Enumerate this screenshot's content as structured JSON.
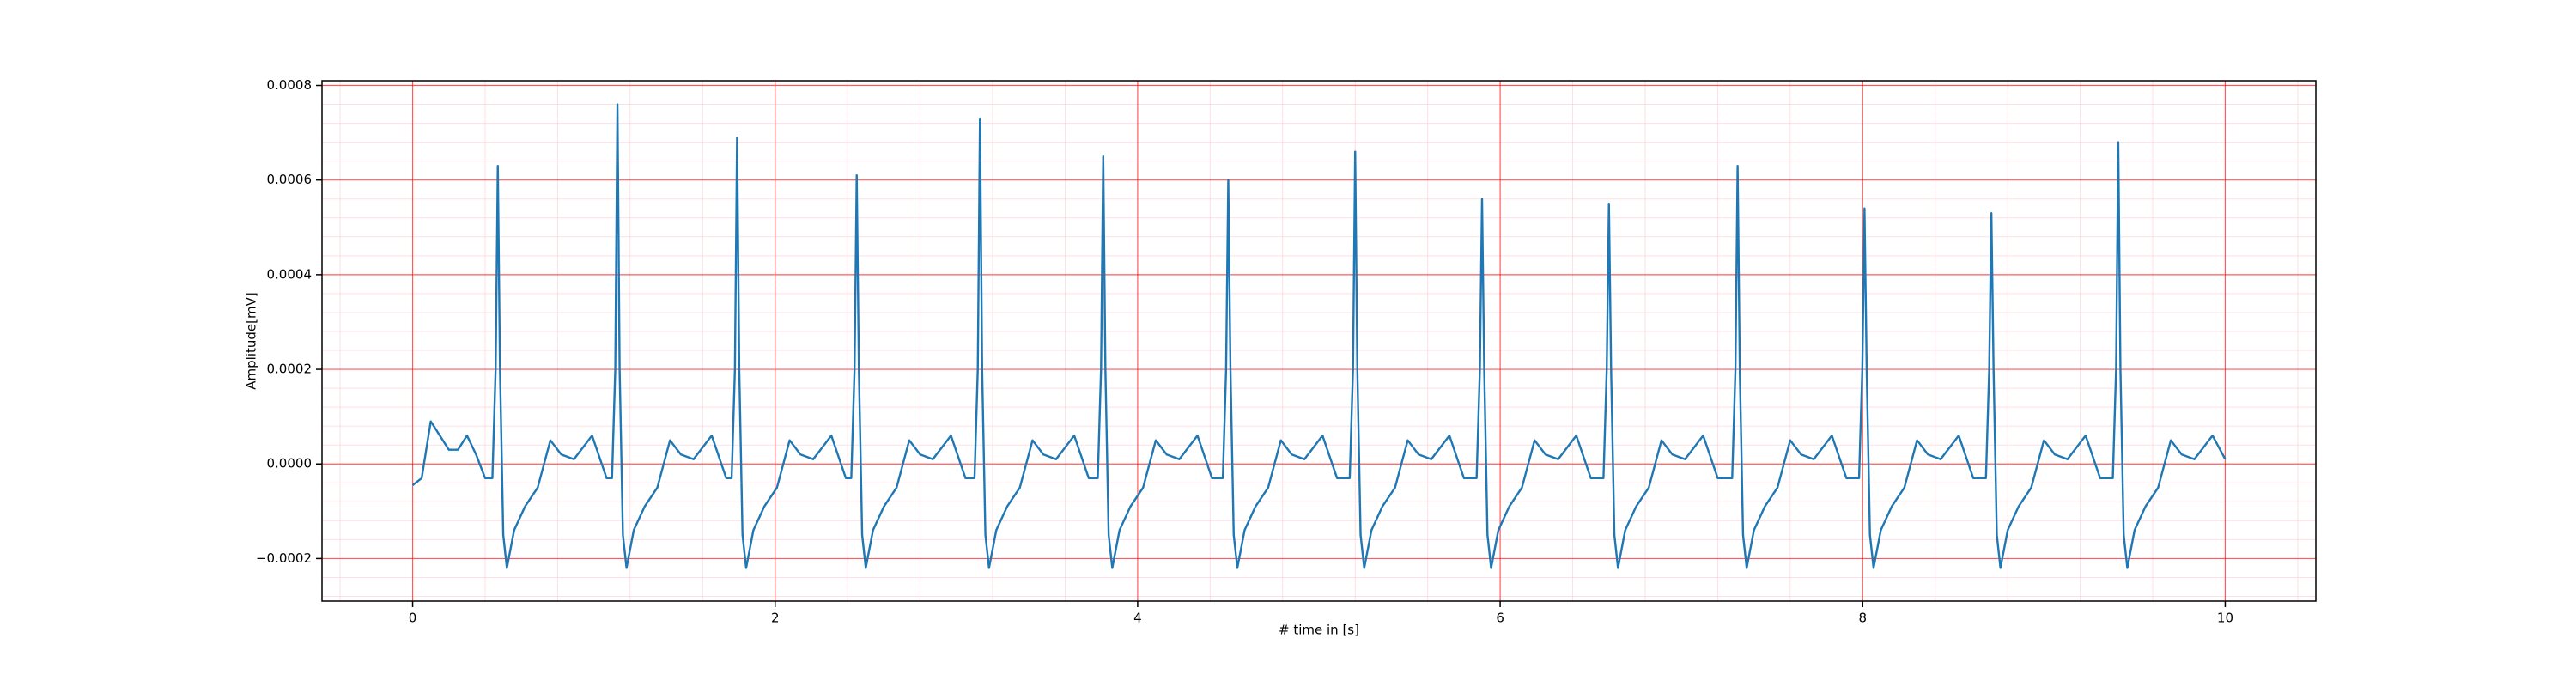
{
  "chart_data": {
    "type": "line",
    "xlabel": "# time in [s]",
    "ylabel": "Amplitude[mV]",
    "xlim": [
      -0.5,
      10.5
    ],
    "ylim": [
      -0.00029,
      0.00081
    ],
    "xticks": [
      0,
      2,
      4,
      6,
      8,
      10
    ],
    "yticks": [
      {
        "value": -0.0002,
        "label": "−0.0002"
      },
      {
        "value": 0,
        "label": "0.0000"
      },
      {
        "value": 0.0002,
        "label": "0.0002"
      },
      {
        "value": 0.0004,
        "label": "0.0004"
      },
      {
        "value": 0.0006,
        "label": "0.0006"
      },
      {
        "value": 0.0008,
        "label": "0.0008"
      }
    ],
    "grid": true,
    "grid_color": "#ff0000",
    "minor_grid_color": "#ffc0cb",
    "series": [
      {
        "color": "#1f77b4",
        "x": [
          0,
          0.05,
          0.1,
          0.15,
          0.2,
          0.25,
          0.3,
          0.35,
          0.4,
          0.44,
          0.458,
          0.47,
          0.482,
          0.5,
          0.52,
          0.56,
          0.62,
          0.69,
          0.76,
          0.82,
          0.89,
          0.99,
          1.07,
          1.1,
          1.118,
          1.13,
          1.142,
          1.16,
          1.18,
          1.22,
          1.28,
          1.35,
          1.42,
          1.48,
          1.55,
          1.65,
          1.73,
          1.76,
          1.778,
          1.79,
          1.802,
          1.82,
          1.84,
          1.88,
          1.94,
          2.01,
          2.08,
          2.14,
          2.21,
          2.31,
          2.39,
          2.42,
          2.438,
          2.45,
          2.462,
          2.48,
          2.5,
          2.54,
          2.6,
          2.67,
          2.74,
          2.8,
          2.87,
          2.97,
          3.05,
          3.1,
          3.118,
          3.13,
          3.142,
          3.16,
          3.18,
          3.22,
          3.28,
          3.35,
          3.42,
          3.48,
          3.55,
          3.65,
          3.73,
          3.78,
          3.798,
          3.81,
          3.822,
          3.84,
          3.86,
          3.9,
          3.96,
          4.03,
          4.1,
          4.16,
          4.23,
          4.33,
          4.41,
          4.47,
          4.488,
          4.5,
          4.512,
          4.53,
          4.55,
          4.59,
          4.65,
          4.72,
          4.79,
          4.85,
          4.92,
          5.02,
          5.1,
          5.17,
          5.188,
          5.2,
          5.212,
          5.23,
          5.25,
          5.29,
          5.35,
          5.42,
          5.49,
          5.55,
          5.62,
          5.72,
          5.8,
          5.87,
          5.888,
          5.9,
          5.912,
          5.93,
          5.95,
          5.99,
          6.05,
          6.12,
          6.19,
          6.25,
          6.32,
          6.42,
          6.5,
          6.57,
          6.588,
          6.6,
          6.612,
          6.63,
          6.65,
          6.69,
          6.75,
          6.82,
          6.89,
          6.95,
          7.02,
          7.12,
          7.2,
          7.28,
          7.298,
          7.31,
          7.322,
          7.34,
          7.36,
          7.4,
          7.46,
          7.53,
          7.6,
          7.66,
          7.73,
          7.83,
          7.91,
          7.98,
          7.998,
          8.01,
          8.022,
          8.04,
          8.06,
          8.1,
          8.16,
          8.23,
          8.3,
          8.36,
          8.43,
          8.53,
          8.61,
          8.68,
          8.698,
          8.71,
          8.722,
          8.74,
          8.76,
          8.8,
          8.86,
          8.93,
          9.0,
          9.06,
          9.13,
          9.23,
          9.31,
          9.38,
          9.398,
          9.41,
          9.422,
          9.44,
          9.46,
          9.5,
          9.56,
          9.63,
          9.7,
          9.76,
          9.83,
          9.93,
          10.0
        ],
        "values": [
          -4.5e-05,
          -3e-05,
          9e-05,
          6e-05,
          3e-05,
          3e-05,
          6e-05,
          2e-05,
          -3e-05,
          -3e-05,
          0.0002,
          0.00063,
          0.0002,
          -0.00015,
          -0.00022,
          -0.00014,
          -9e-05,
          -5e-05,
          5e-05,
          2e-05,
          1e-05,
          6e-05,
          -3e-05,
          -3e-05,
          0.0002,
          0.00076,
          0.0002,
          -0.00015,
          -0.00022,
          -0.00014,
          -9e-05,
          -5e-05,
          5e-05,
          2e-05,
          1e-05,
          6e-05,
          -3e-05,
          -3e-05,
          0.0002,
          0.00069,
          0.0002,
          -0.00015,
          -0.00022,
          -0.00014,
          -9e-05,
          -5e-05,
          5e-05,
          2e-05,
          1e-05,
          6e-05,
          -3e-05,
          -3e-05,
          0.0002,
          0.00061,
          0.0002,
          -0.00015,
          -0.00022,
          -0.00014,
          -9e-05,
          -5e-05,
          5e-05,
          2e-05,
          1e-05,
          6e-05,
          -3e-05,
          -3e-05,
          0.0002,
          0.00073,
          0.0002,
          -0.00015,
          -0.00022,
          -0.00014,
          -9e-05,
          -5e-05,
          5e-05,
          2e-05,
          1e-05,
          6e-05,
          -3e-05,
          -3e-05,
          0.0002,
          0.00065,
          0.0002,
          -0.00015,
          -0.00022,
          -0.00014,
          -9e-05,
          -5e-05,
          5e-05,
          2e-05,
          1e-05,
          6e-05,
          -3e-05,
          -3e-05,
          0.0002,
          0.0006,
          0.0002,
          -0.00015,
          -0.00022,
          -0.00014,
          -9e-05,
          -5e-05,
          5e-05,
          2e-05,
          1e-05,
          6e-05,
          -3e-05,
          -3e-05,
          0.0002,
          0.00066,
          0.0002,
          -0.00015,
          -0.00022,
          -0.00014,
          -9e-05,
          -5e-05,
          5e-05,
          2e-05,
          1e-05,
          6e-05,
          -3e-05,
          -3e-05,
          0.0002,
          0.00056,
          0.0002,
          -0.00015,
          -0.00022,
          -0.00014,
          -9e-05,
          -5e-05,
          5e-05,
          2e-05,
          1e-05,
          6e-05,
          -3e-05,
          -3e-05,
          0.0002,
          0.00055,
          0.0002,
          -0.00015,
          -0.00022,
          -0.00014,
          -9e-05,
          -5e-05,
          5e-05,
          2e-05,
          1e-05,
          6e-05,
          -3e-05,
          -3e-05,
          0.0002,
          0.00063,
          0.0002,
          -0.00015,
          -0.00022,
          -0.00014,
          -9e-05,
          -5e-05,
          5e-05,
          2e-05,
          1e-05,
          6e-05,
          -3e-05,
          -3e-05,
          0.0002,
          0.00054,
          0.0002,
          -0.00015,
          -0.00022,
          -0.00014,
          -9e-05,
          -5e-05,
          5e-05,
          2e-05,
          1e-05,
          6e-05,
          -3e-05,
          -3e-05,
          0.0002,
          0.00053,
          0.0002,
          -0.00015,
          -0.00022,
          -0.00014,
          -9e-05,
          -5e-05,
          5e-05,
          2e-05,
          1e-05,
          6e-05,
          -3e-05,
          -3e-05,
          0.0002,
          0.00068,
          0.0002,
          -0.00015,
          -0.00022,
          -0.00014,
          -9e-05,
          -5e-05,
          5e-05,
          2e-05,
          1e-05,
          6e-05,
          1e-05
        ]
      }
    ]
  }
}
